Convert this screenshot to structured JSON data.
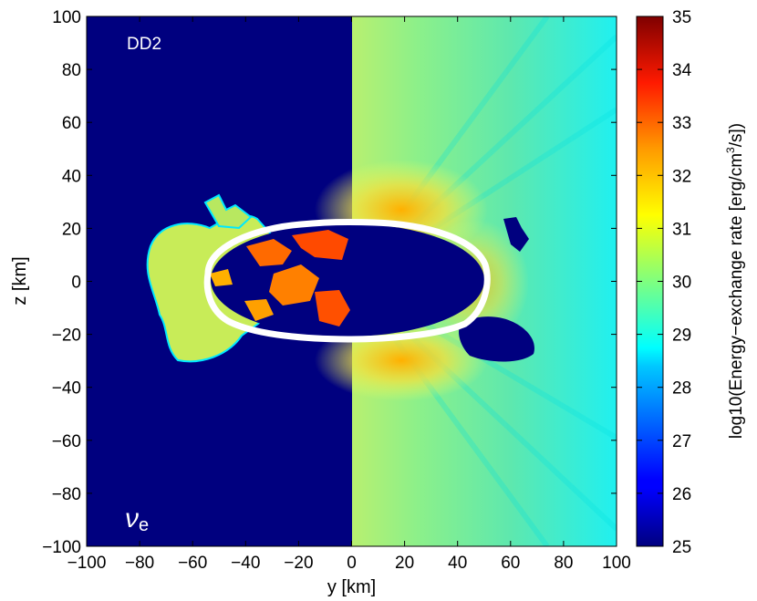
{
  "chart_data": {
    "type": "heatmap",
    "title": "",
    "xlabel": "y [km]",
    "ylabel": "z [km]",
    "xlim": [
      -100,
      100
    ],
    "ylim": [
      -100,
      100
    ],
    "xticks": [
      "−100",
      "−80",
      "−60",
      "−40",
      "−20",
      "0",
      "20",
      "40",
      "60",
      "80",
      "100"
    ],
    "yticks": [
      "100",
      "80",
      "60",
      "40",
      "20",
      "0",
      "−20",
      "−40",
      "−60",
      "−80",
      "−100"
    ],
    "colorbar": {
      "label": "log10(Energy−exchange rate [erg/cm³/s])",
      "label_prefix": "log10(Energy−exchange rate [erg/cm",
      "label_sup": "3",
      "label_suffix": "/s])",
      "range": [
        25,
        35
      ],
      "ticks": [
        "35",
        "34",
        "33",
        "32",
        "31",
        "30",
        "29",
        "28",
        "27",
        "26",
        "25"
      ],
      "colormap": "jet"
    },
    "annotations": {
      "model": "DD2",
      "species_symbol": "ν",
      "species_subscript": "e"
    },
    "colors": {
      "background_dark": "#00007f",
      "contour": "#ffffff",
      "right_field": "#6fe8a0",
      "hot_spots": "#ff5a00"
    }
  }
}
